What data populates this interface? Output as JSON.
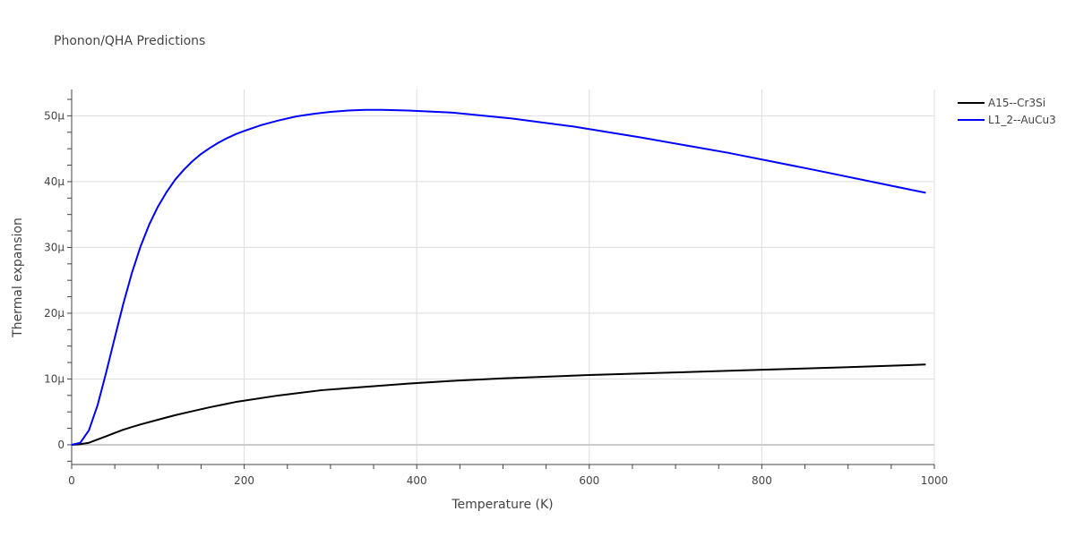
{
  "chart_data": {
    "type": "line",
    "title": "Phonon/QHA Predictions",
    "xlabel": "Temperature (K)",
    "ylabel": "Thermal expansion",
    "xlim": [
      0,
      1000
    ],
    "ylim": [
      -3e-06,
      5.4e-05
    ],
    "x_ticks": [
      {
        "value": 0,
        "label": "0"
      },
      {
        "value": 200,
        "label": "200"
      },
      {
        "value": 400,
        "label": "400"
      },
      {
        "value": 600,
        "label": "600"
      },
      {
        "value": 800,
        "label": "800"
      },
      {
        "value": 1000,
        "label": "1000"
      }
    ],
    "y_ticks": [
      {
        "value": 0,
        "label": "0"
      },
      {
        "value": 1e-05,
        "label": "10μ"
      },
      {
        "value": 2e-05,
        "label": "20μ"
      },
      {
        "value": 3e-05,
        "label": "30μ"
      },
      {
        "value": 4e-05,
        "label": "40μ"
      },
      {
        "value": 5e-05,
        "label": "50μ"
      }
    ],
    "grid": true,
    "legend_position": "top-right",
    "series": [
      {
        "name": "A15--Cr3Si",
        "color": "#000000",
        "x": [
          0,
          10,
          20,
          30,
          40,
          50,
          60,
          70,
          80,
          100,
          120,
          140,
          160,
          190,
          240,
          290,
          340,
          390,
          440,
          500,
          600,
          700,
          800,
          900,
          990
        ],
        "y": [
          0,
          1e-07,
          3e-07,
          8e-07,
          1.3e-06,
          1.8e-06,
          2.3e-06,
          2.7e-06,
          3.1e-06,
          3.8e-06,
          4.5e-06,
          5.1e-06,
          5.7e-06,
          6.5e-06,
          7.5e-06,
          8.3e-06,
          8.8e-06,
          9.3e-06,
          9.7e-06,
          1.01e-05,
          1.06e-05,
          1.1e-05,
          1.14e-05,
          1.18e-05,
          1.22e-05
        ]
      },
      {
        "name": "L1_2--AuCu3",
        "color": "#0000ff",
        "x": [
          0,
          10,
          20,
          30,
          40,
          50,
          60,
          70,
          80,
          90,
          100,
          110,
          120,
          130,
          140,
          150,
          160,
          170,
          180,
          190,
          200,
          220,
          240,
          260,
          280,
          300,
          320,
          340,
          360,
          390,
          440,
          510,
          580,
          660,
          760,
          860,
          990
        ],
        "y": [
          0,
          3e-07,
          2.2e-06,
          6e-06,
          1.1e-05,
          1.63e-05,
          2.15e-05,
          2.62e-05,
          3.02e-05,
          3.35e-05,
          3.62e-05,
          3.84e-05,
          4.03e-05,
          4.18e-05,
          4.31e-05,
          4.42e-05,
          4.51e-05,
          4.59e-05,
          4.66e-05,
          4.72e-05,
          4.77e-05,
          4.86e-05,
          4.93e-05,
          4.99e-05,
          5.03e-05,
          5.06e-05,
          5.08e-05,
          5.09e-05,
          5.09e-05,
          5.08e-05,
          5.05e-05,
          4.96e-05,
          4.84e-05,
          4.67e-05,
          4.44e-05,
          4.18e-05,
          3.83e-05
        ]
      }
    ]
  }
}
